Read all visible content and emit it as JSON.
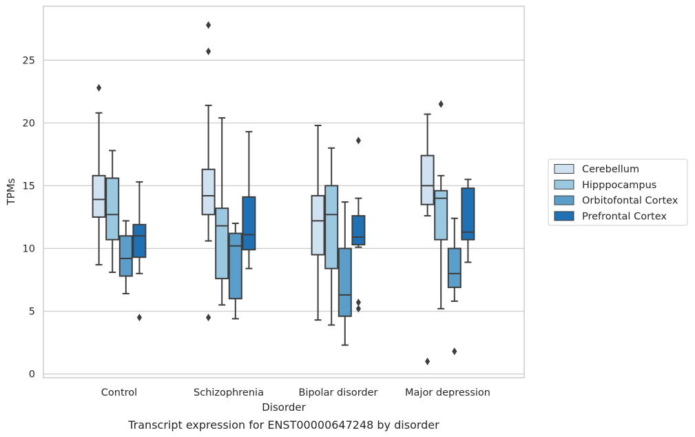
{
  "caption": "Transcript expression for ENST00000647248 by disorder",
  "chart_data": {
    "type": "box",
    "xlabel": "Disorder",
    "ylabel": "TPMs",
    "ylim": [
      -0.3,
      29.3
    ],
    "yticks": [
      0,
      5,
      10,
      15,
      20,
      25
    ],
    "grid": "horizontal",
    "legend_position": "right",
    "categories": [
      "Control",
      "Schizophrenia",
      "Bipolar disorder",
      "Major depression"
    ],
    "series": [
      {
        "name": "Cerebellum",
        "color": "#d0e1f2",
        "boxes": [
          {
            "whisker_low": 8.7,
            "q1": 12.5,
            "median": 13.9,
            "q3": 15.8,
            "whisker_high": 20.8,
            "outliers": [
              22.8
            ]
          },
          {
            "whisker_low": 10.6,
            "q1": 12.7,
            "median": 14.2,
            "q3": 16.3,
            "whisker_high": 21.4,
            "outliers": [
              4.5,
              25.7,
              27.8
            ]
          },
          {
            "whisker_low": 4.3,
            "q1": 9.5,
            "median": 12.2,
            "q3": 14.2,
            "whisker_high": 19.8,
            "outliers": []
          },
          {
            "whisker_low": 12.6,
            "q1": 13.5,
            "median": 15.0,
            "q3": 17.4,
            "whisker_high": 20.7,
            "outliers": [
              1.0
            ]
          }
        ]
      },
      {
        "name": "Hipppocampus",
        "color": "#9ac8e0",
        "boxes": [
          {
            "whisker_low": 8.1,
            "q1": 10.7,
            "median": 12.7,
            "q3": 15.6,
            "whisker_high": 17.8,
            "outliers": []
          },
          {
            "whisker_low": 5.5,
            "q1": 7.6,
            "median": 11.8,
            "q3": 13.2,
            "whisker_high": 20.4,
            "outliers": []
          },
          {
            "whisker_low": 3.9,
            "q1": 8.4,
            "median": 12.7,
            "q3": 15.0,
            "whisker_high": 18.0,
            "outliers": []
          },
          {
            "whisker_low": 5.2,
            "q1": 10.7,
            "median": 14.0,
            "q3": 14.6,
            "whisker_high": 15.8,
            "outliers": [
              21.5
            ]
          }
        ]
      },
      {
        "name": "Orbitofontal Cortex",
        "color": "#5a9ec9",
        "boxes": [
          {
            "whisker_low": 6.4,
            "q1": 7.8,
            "median": 9.2,
            "q3": 11.0,
            "whisker_high": 12.2,
            "outliers": []
          },
          {
            "whisker_low": 4.4,
            "q1": 6.0,
            "median": 10.2,
            "q3": 11.2,
            "whisker_high": 12.0,
            "outliers": []
          },
          {
            "whisker_low": 2.3,
            "q1": 4.6,
            "median": 6.3,
            "q3": 10.0,
            "whisker_high": 13.7,
            "outliers": []
          },
          {
            "whisker_low": 5.8,
            "q1": 6.9,
            "median": 8.0,
            "q3": 10.0,
            "whisker_high": 12.4,
            "outliers": [
              1.8
            ]
          }
        ]
      },
      {
        "name": "Prefrontal Cortex",
        "color": "#2070b4",
        "boxes": [
          {
            "whisker_low": 8.0,
            "q1": 9.3,
            "median": 11.0,
            "q3": 11.9,
            "whisker_high": 15.3,
            "outliers": [
              4.5
            ]
          },
          {
            "whisker_low": 8.4,
            "q1": 9.9,
            "median": 11.1,
            "q3": 14.1,
            "whisker_high": 19.3,
            "outliers": []
          },
          {
            "whisker_low": 10.1,
            "q1": 10.3,
            "median": 10.9,
            "q3": 12.6,
            "whisker_high": 14.0,
            "outliers": [
              5.2,
              5.7,
              18.6
            ]
          },
          {
            "whisker_low": 8.9,
            "q1": 10.7,
            "median": 11.3,
            "q3": 14.8,
            "whisker_high": 15.5,
            "outliers": []
          }
        ]
      }
    ]
  }
}
